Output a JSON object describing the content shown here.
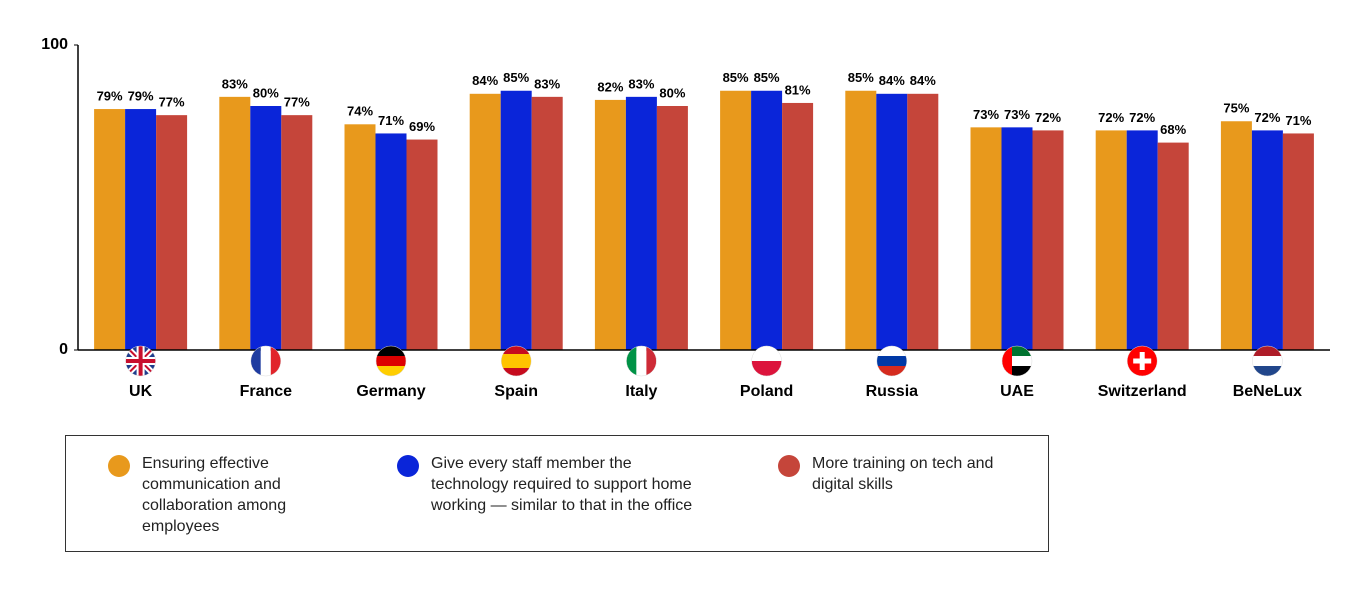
{
  "chart_data": {
    "type": "bar",
    "categories": [
      "UK",
      "France",
      "Germany",
      "Spain",
      "Italy",
      "Poland",
      "Russia",
      "UAE",
      "Switzerland",
      "BeNeLux"
    ],
    "series": [
      {
        "name": "Ensuring effective communication and collaboration among employees",
        "color": "#e8991c",
        "values": [
          79,
          83,
          74,
          84,
          82,
          85,
          85,
          73,
          72,
          75
        ],
        "value_labels": [
          "79%",
          "83%",
          "74%",
          "84%",
          "82%",
          "85%",
          "85%",
          "73%",
          "72%",
          "75%"
        ]
      },
      {
        "name": "Give every staff member the technology required to support home working — similar to that in the office",
        "color": "#0a25d9",
        "values": [
          79,
          80,
          71,
          85,
          83,
          85,
          84,
          73,
          72,
          72
        ],
        "value_labels": [
          "79%",
          "80%",
          "71%",
          "85%",
          "83%",
          "85%",
          "84%",
          "73%",
          "72%",
          "72%"
        ]
      },
      {
        "name": "More training on tech and digital skills",
        "color": "#c5453a",
        "values": [
          77,
          77,
          69,
          83,
          80,
          81,
          84,
          72,
          68,
          71
        ],
        "value_labels": [
          "77%",
          "77%",
          "69%",
          "83%",
          "80%",
          "81%",
          "84%",
          "72%",
          "68%",
          "71%"
        ]
      }
    ],
    "ylim": [
      0,
      100
    ],
    "yticks": [
      0,
      100
    ],
    "grid": false
  }
}
